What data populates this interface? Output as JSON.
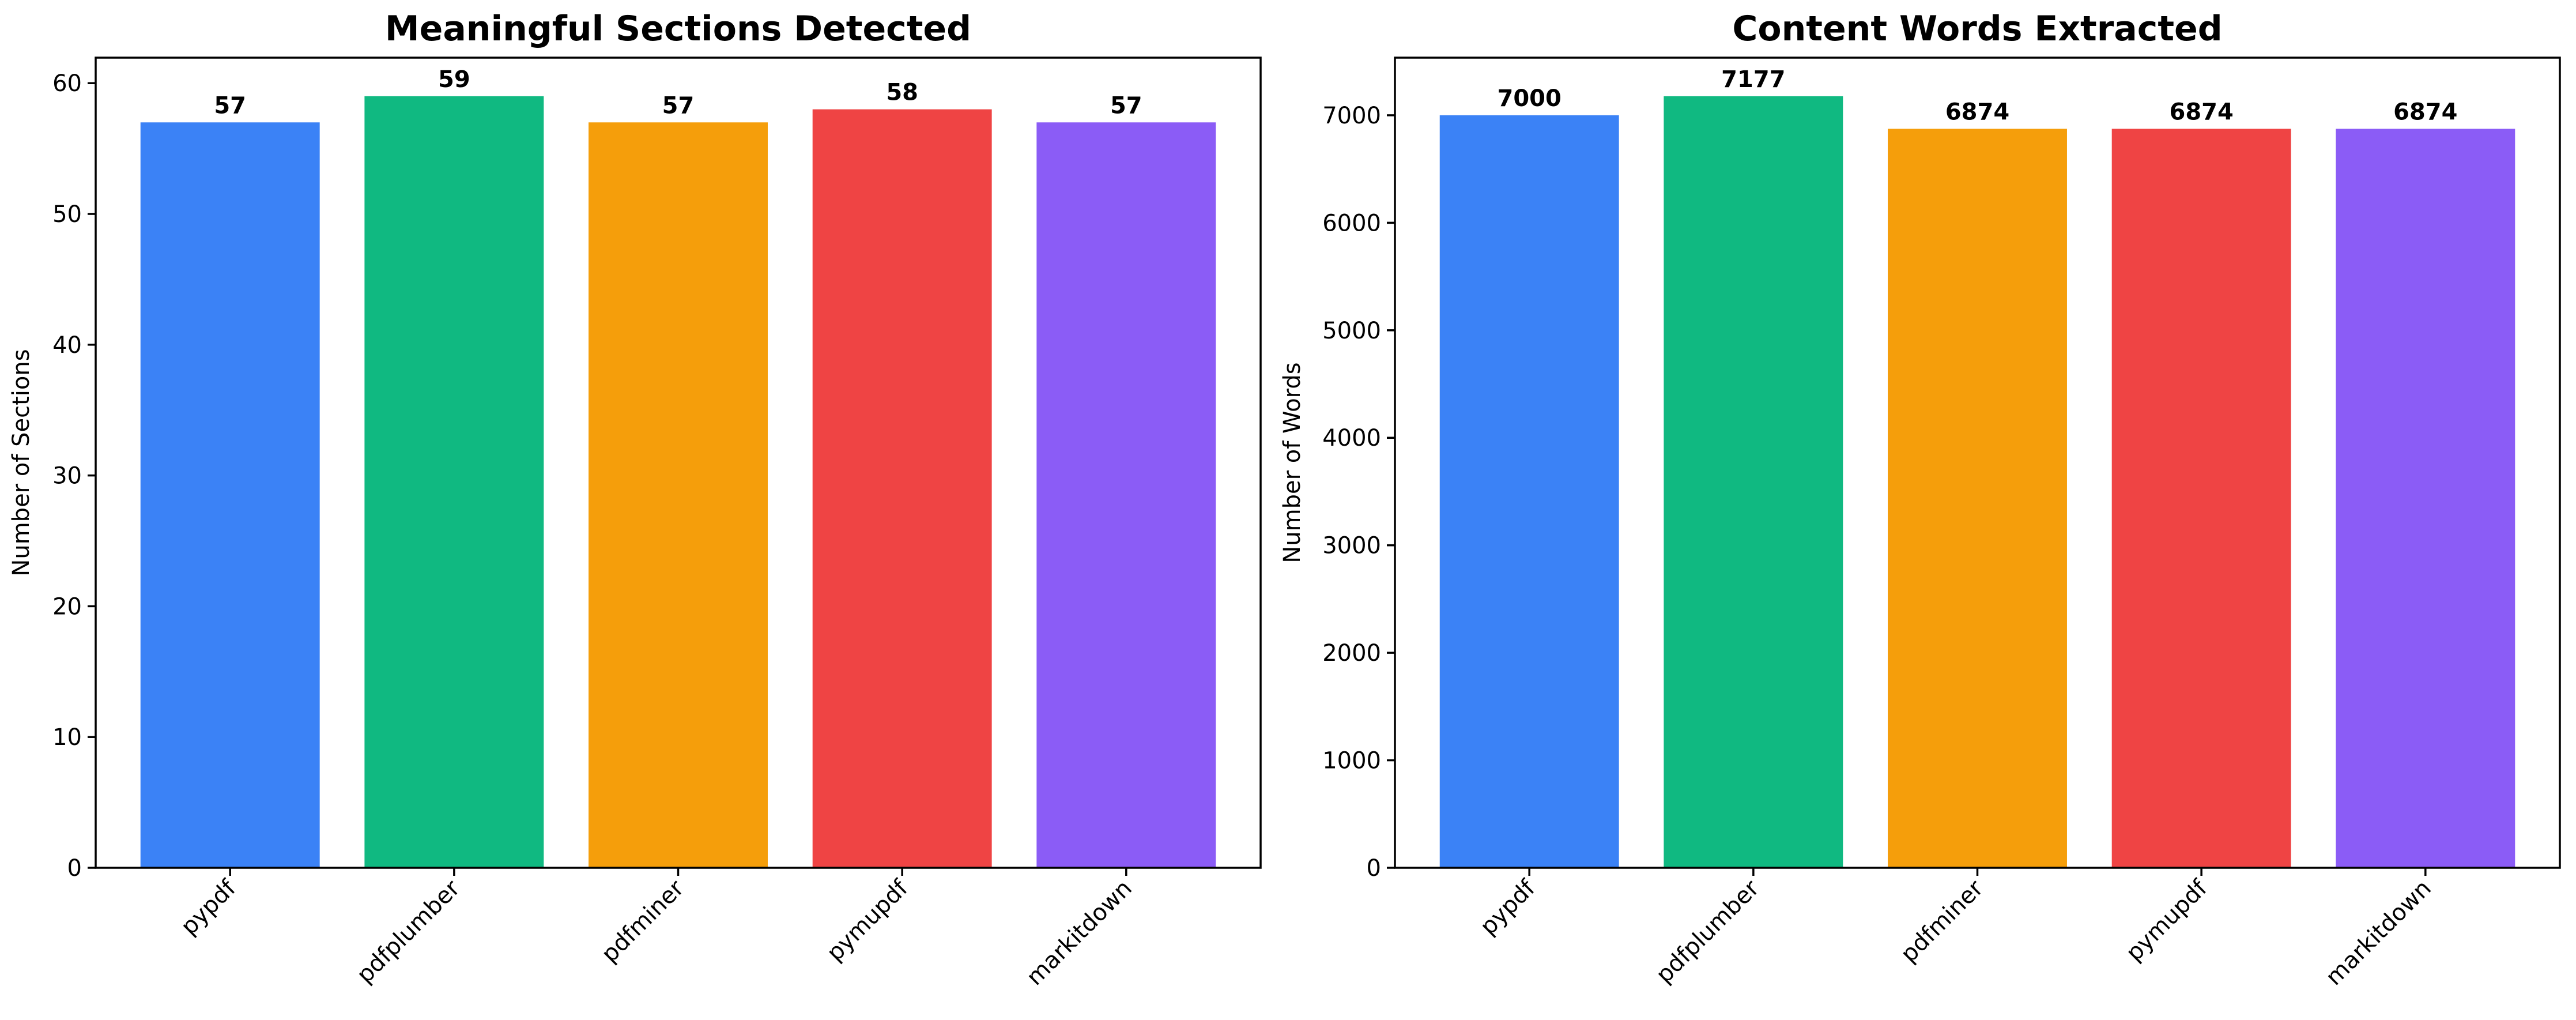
{
  "chart_data": [
    {
      "type": "bar",
      "title": "Meaningful Sections Detected",
      "xlabel": "",
      "ylabel": "Number of Sections",
      "categories": [
        "pypdf",
        "pdfplumber",
        "pdfminer",
        "pymupdf",
        "markitdown"
      ],
      "values": [
        57,
        59,
        57,
        58,
        57
      ],
      "value_labels": [
        "57",
        "59",
        "57",
        "58",
        "57"
      ],
      "colors": [
        "#3b82f6",
        "#10b981",
        "#f59e0b",
        "#ef4444",
        "#8b5cf6"
      ],
      "ylim": [
        0,
        61.95
      ],
      "yticks": [
        0,
        10,
        20,
        30,
        40,
        50,
        60
      ],
      "ytick_labels": [
        "0",
        "10",
        "20",
        "30",
        "40",
        "50",
        "60"
      ],
      "grid": false,
      "xtick_rotation": 45
    },
    {
      "type": "bar",
      "title": "Content Words Extracted",
      "xlabel": "",
      "ylabel": "Number of Words",
      "categories": [
        "pypdf",
        "pdfplumber",
        "pdfminer",
        "pymupdf",
        "markitdown"
      ],
      "values": [
        7000,
        7177,
        6874,
        6874,
        6874
      ],
      "value_labels": [
        "7000",
        "7177",
        "6874",
        "6874",
        "6874"
      ],
      "colors": [
        "#3b82f6",
        "#10b981",
        "#f59e0b",
        "#ef4444",
        "#8b5cf6"
      ],
      "ylim": [
        0,
        7536
      ],
      "yticks": [
        0,
        1000,
        2000,
        3000,
        4000,
        5000,
        6000,
        7000
      ],
      "ytick_labels": [
        "0",
        "1000",
        "2000",
        "3000",
        "4000",
        "5000",
        "6000",
        "7000"
      ],
      "grid": false,
      "xtick_rotation": 45
    }
  ]
}
